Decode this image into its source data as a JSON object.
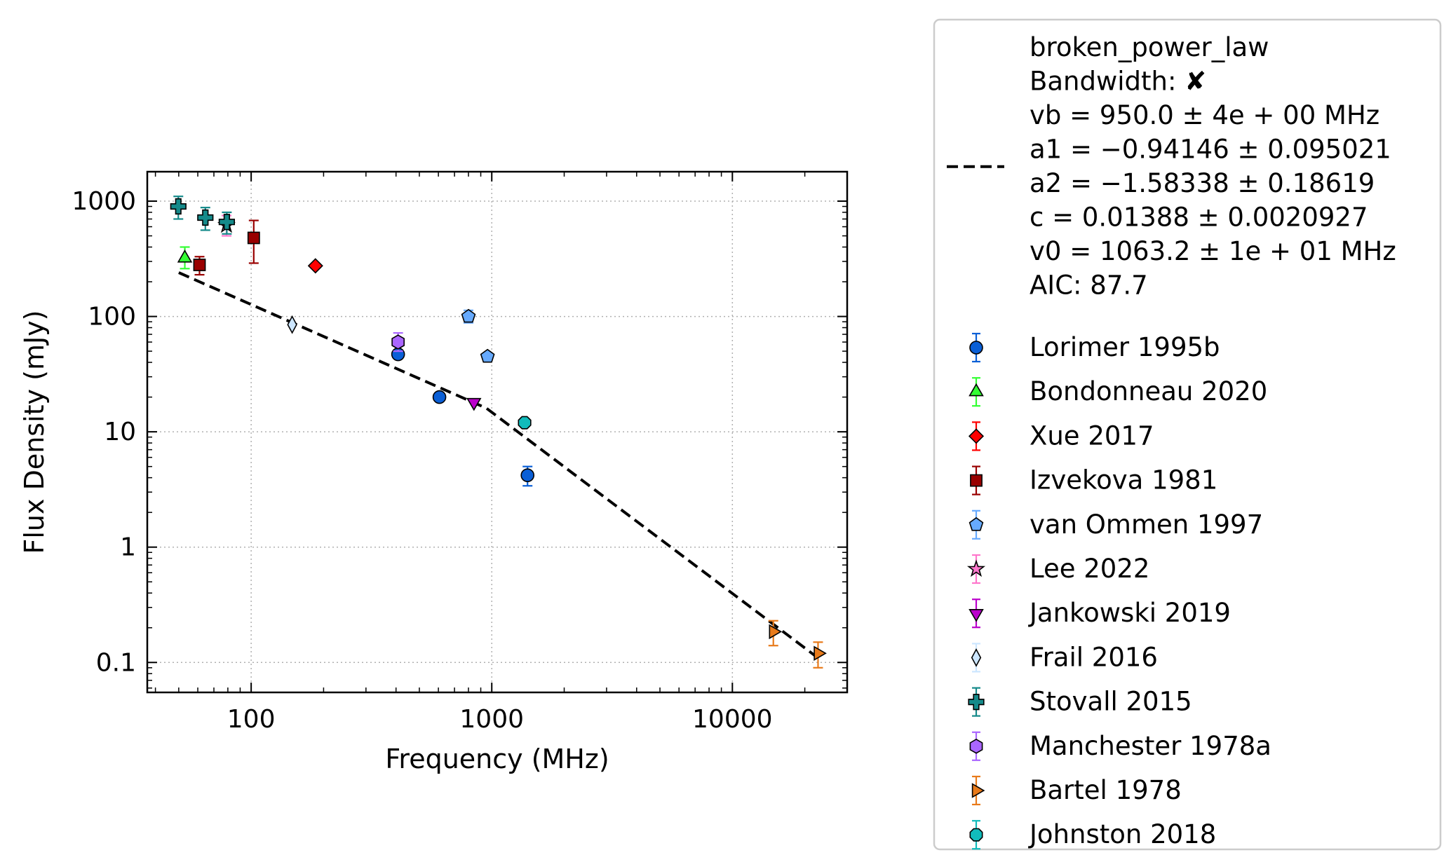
{
  "chart_data": {
    "type": "scatter",
    "xlabel": "Frequency (MHz)",
    "ylabel": "Flux Density (mJy)",
    "xscale": "log",
    "yscale": "log",
    "xlim": [
      37,
      30000
    ],
    "ylim": [
      0.055,
      1800
    ],
    "xticks": [
      {
        "v": 100,
        "label": "100"
      },
      {
        "v": 1000,
        "label": "1000"
      },
      {
        "v": 10000,
        "label": "10000"
      }
    ],
    "yticks": [
      {
        "v": 0.1,
        "label": "0.1"
      },
      {
        "v": 1,
        "label": "1"
      },
      {
        "v": 10,
        "label": "10"
      },
      {
        "v": 100,
        "label": "100"
      },
      {
        "v": 1000,
        "label": "1000"
      }
    ],
    "grid": true,
    "legend_position": "outside-right",
    "fit": {
      "name": "broken_power_law",
      "style": "dashed",
      "color": "#000000",
      "label_lines": [
        "broken_power_law",
        "Bandwidth: ✘",
        "vb = 950.0 ± 4e + 00 MHz",
        "a1 = −0.94146 ± 0.095021",
        "a2 = −1.58338 ± 0.18619",
        "c = 0.01388 ± 0.0020927",
        "v0 = 1063.2 ± 1e + 01 MHz",
        "AIC: 87.7"
      ],
      "points": [
        [
          50,
          240
        ],
        [
          950,
          16
        ],
        [
          22000,
          0.115
        ]
      ]
    },
    "series": [
      {
        "name": "Lorimer 1995b",
        "marker": "circle",
        "color": "#0a5fd6",
        "ecolor": "#0a5fd6",
        "points": [
          {
            "x": 408,
            "y": 47
          },
          {
            "x": 606,
            "y": 20
          },
          {
            "x": 1408,
            "y": 4.2,
            "err": [
              3.4,
              5.0
            ]
          }
        ]
      },
      {
        "name": "Bondonneau 2020",
        "marker": "triangle-up",
        "color": "#33ff33",
        "ecolor": "#33ff33",
        "points": [
          {
            "x": 53,
            "y": 320,
            "err": [
              260,
              400
            ]
          }
        ]
      },
      {
        "name": "Xue 2017",
        "marker": "diamond",
        "color": "#ff0000",
        "ecolor": "#ff0000",
        "points": [
          {
            "x": 185,
            "y": 275
          }
        ]
      },
      {
        "name": "Izvekova 1981",
        "marker": "square",
        "color": "#990000",
        "ecolor": "#990000",
        "points": [
          {
            "x": 61,
            "y": 280,
            "err": [
              230,
              330
            ]
          },
          {
            "x": 102.5,
            "y": 480,
            "err": [
              290,
              680
            ]
          }
        ]
      },
      {
        "name": "van Ommen 1997",
        "marker": "pentagon",
        "color": "#66aaff",
        "ecolor": "#66aaff",
        "points": [
          {
            "x": 800,
            "y": 100,
            "err": [
              88,
              113
            ]
          },
          {
            "x": 960,
            "y": 45
          }
        ]
      },
      {
        "name": "Lee 2022",
        "marker": "star",
        "color": "#ff77cc",
        "ecolor": "#ff77cc",
        "points": [
          {
            "x": 79,
            "y": 620,
            "err": [
              500,
              750
            ]
          }
        ]
      },
      {
        "name": "Jankowski 2019",
        "marker": "triangle-down",
        "color": "#bb00cc",
        "ecolor": "#bb00cc",
        "points": [
          {
            "x": 843,
            "y": 18
          }
        ]
      },
      {
        "name": "Frail 2016",
        "marker": "thin-diamond",
        "color": "#cce6ff",
        "ecolor": "#cce6ff",
        "points": [
          {
            "x": 148,
            "y": 85
          }
        ]
      },
      {
        "name": "Stovall 2015",
        "marker": "plus",
        "color": "#158a8a",
        "ecolor": "#158a8a",
        "points": [
          {
            "x": 49.8,
            "y": 900,
            "err": [
              700,
              1100
            ]
          },
          {
            "x": 64.5,
            "y": 720,
            "err": [
              560,
              880
            ]
          },
          {
            "x": 79.2,
            "y": 660,
            "err": [
              520,
              800
            ]
          }
        ]
      },
      {
        "name": "Manchester 1978a",
        "marker": "hexagon",
        "color": "#aa66ff",
        "ecolor": "#aa66ff",
        "points": [
          {
            "x": 408,
            "y": 60,
            "err": [
              50,
              72
            ]
          }
        ]
      },
      {
        "name": "Bartel 1978",
        "marker": "triangle-right",
        "color": "#e87a1a",
        "ecolor": "#e87a1a",
        "points": [
          {
            "x": 14800,
            "y": 0.185,
            "err": [
              0.14,
              0.23
            ]
          },
          {
            "x": 22700,
            "y": 0.12,
            "err": [
              0.09,
              0.15
            ]
          }
        ]
      },
      {
        "name": "Johnston 2018",
        "marker": "octagon",
        "color": "#11bbbb",
        "ecolor": "#11bbbb",
        "points": [
          {
            "x": 1369,
            "y": 12
          }
        ]
      }
    ]
  }
}
